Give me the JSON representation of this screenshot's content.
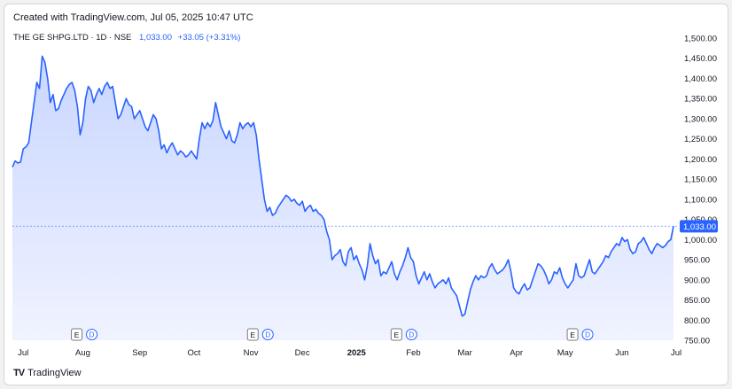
{
  "header": {
    "created": "Created with TradingView.com, Jul 05, 2025 10:47 UTC",
    "symbol": "THE GE SHPG.LTD · 1D · NSE",
    "last_price": "1,033.00",
    "change": "+33.05 (+3.31%)"
  },
  "footer": {
    "brand": "TradingView",
    "logo": "TV"
  },
  "colors": {
    "line": "#2962ff",
    "fill_top": "#c9d6ff",
    "fill_bottom": "#f0f3ff",
    "label_bg": "#2962ff"
  },
  "chart_data": {
    "type": "area",
    "title": "",
    "xlabel": "",
    "ylabel": "",
    "ylim": [
      750,
      1500
    ],
    "y_ticks": [
      "1,500.00",
      "1,450.00",
      "1,400.00",
      "1,350.00",
      "1,300.00",
      "1,250.00",
      "1,200.00",
      "1,150.00",
      "1,100.00",
      "1,050.00",
      "1,000.00",
      "950.00",
      "900.00",
      "850.00",
      "800.00",
      "750.00"
    ],
    "x_ticks": [
      {
        "label": "Jul",
        "index": 4,
        "bold": false
      },
      {
        "label": "Aug",
        "index": 26,
        "bold": false
      },
      {
        "label": "Sep",
        "index": 47,
        "bold": false
      },
      {
        "label": "Oct",
        "index": 67,
        "bold": false
      },
      {
        "label": "Nov",
        "index": 88,
        "bold": false
      },
      {
        "label": "Dec",
        "index": 107,
        "bold": false
      },
      {
        "label": "2025",
        "index": 127,
        "bold": true
      },
      {
        "label": "Feb",
        "index": 148,
        "bold": false
      },
      {
        "label": "Mar",
        "index": 167,
        "bold": false
      },
      {
        "label": "Apr",
        "index": 186,
        "bold": false
      },
      {
        "label": "May",
        "index": 204,
        "bold": false
      },
      {
        "label": "Jun",
        "index": 225,
        "bold": false
      },
      {
        "label": "Jul",
        "index": 245,
        "bold": false
      }
    ],
    "events": [
      {
        "index": 27,
        "letters": [
          "E",
          "D"
        ]
      },
      {
        "index": 92,
        "letters": [
          "E",
          "D"
        ]
      },
      {
        "index": 145,
        "letters": [
          "E",
          "D"
        ]
      },
      {
        "index": 210,
        "letters": [
          "E",
          "D"
        ]
      }
    ],
    "last_value": 1033.0,
    "last_value_label": "1,033.00",
    "values": [
      1180,
      1195,
      1190,
      1192,
      1225,
      1230,
      1240,
      1290,
      1340,
      1390,
      1375,
      1455,
      1440,
      1400,
      1340,
      1360,
      1320,
      1325,
      1345,
      1360,
      1375,
      1385,
      1390,
      1370,
      1330,
      1260,
      1290,
      1350,
      1380,
      1370,
      1340,
      1360,
      1375,
      1360,
      1380,
      1390,
      1375,
      1380,
      1340,
      1300,
      1310,
      1330,
      1350,
      1335,
      1330,
      1300,
      1310,
      1320,
      1300,
      1280,
      1270,
      1290,
      1310,
      1300,
      1270,
      1225,
      1235,
      1215,
      1230,
      1240,
      1225,
      1210,
      1220,
      1215,
      1205,
      1210,
      1220,
      1210,
      1200,
      1250,
      1290,
      1275,
      1290,
      1280,
      1295,
      1340,
      1310,
      1280,
      1265,
      1250,
      1270,
      1245,
      1240,
      1260,
      1290,
      1275,
      1285,
      1290,
      1280,
      1290,
      1260,
      1200,
      1150,
      1100,
      1070,
      1080,
      1060,
      1065,
      1080,
      1090,
      1100,
      1110,
      1105,
      1095,
      1100,
      1090,
      1085,
      1095,
      1070,
      1080,
      1085,
      1070,
      1075,
      1065,
      1060,
      1050,
      1020,
      1000,
      950,
      960,
      965,
      975,
      945,
      935,
      970,
      980,
      950,
      960,
      940,
      925,
      900,
      935,
      990,
      960,
      940,
      950,
      910,
      920,
      915,
      930,
      945,
      915,
      900,
      920,
      935,
      955,
      980,
      955,
      945,
      910,
      890,
      905,
      920,
      900,
      915,
      895,
      880,
      890,
      895,
      900,
      890,
      905,
      880,
      870,
      860,
      835,
      810,
      815,
      845,
      875,
      895,
      910,
      900,
      910,
      905,
      910,
      930,
      940,
      925,
      915,
      920,
      925,
      935,
      950,
      920,
      880,
      870,
      865,
      880,
      890,
      875,
      880,
      900,
      920,
      940,
      935,
      925,
      910,
      890,
      900,
      920,
      915,
      930,
      905,
      890,
      880,
      890,
      900,
      940,
      910,
      905,
      910,
      930,
      950,
      920,
      915,
      925,
      935,
      945,
      960,
      955,
      970,
      980,
      990,
      985,
      1005,
      995,
      1000,
      975,
      965,
      970,
      990,
      995,
      1005,
      990,
      975,
      965,
      980,
      990,
      985,
      980,
      985,
      995,
      1000,
      1033
    ]
  }
}
